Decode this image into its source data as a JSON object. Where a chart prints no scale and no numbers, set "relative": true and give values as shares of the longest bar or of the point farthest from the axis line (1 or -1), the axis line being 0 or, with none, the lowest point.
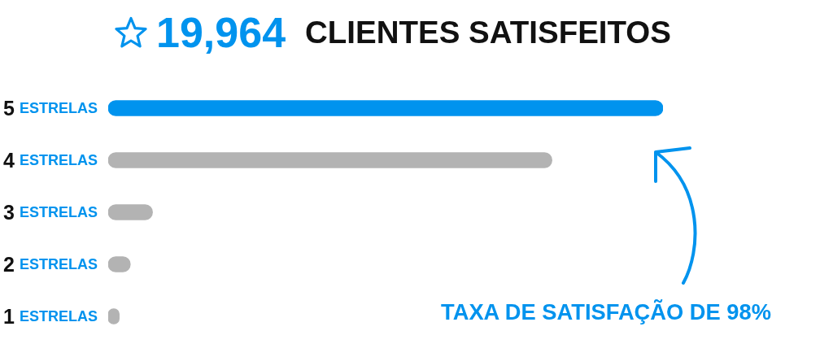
{
  "chart_data": {
    "type": "bar",
    "orientation": "horizontal",
    "relative": true,
    "title": "19,964 CLIENTES SATISFEITOS",
    "categories": [
      "5 ESTRELAS",
      "4 ESTRELAS",
      "3 ESTRELAS",
      "2 ESTRELAS",
      "1 ESTRELAS"
    ],
    "values": [
      1,
      0.8,
      0.08,
      0.04,
      0.02
    ],
    "colors": [
      "#0093ee",
      "#b3b3b3",
      "#b3b3b3",
      "#b3b3b3",
      "#b3b3b3"
    ],
    "annotations": [
      "TAXA DE SATISFAÇÃO DE 98%"
    ]
  }
}
